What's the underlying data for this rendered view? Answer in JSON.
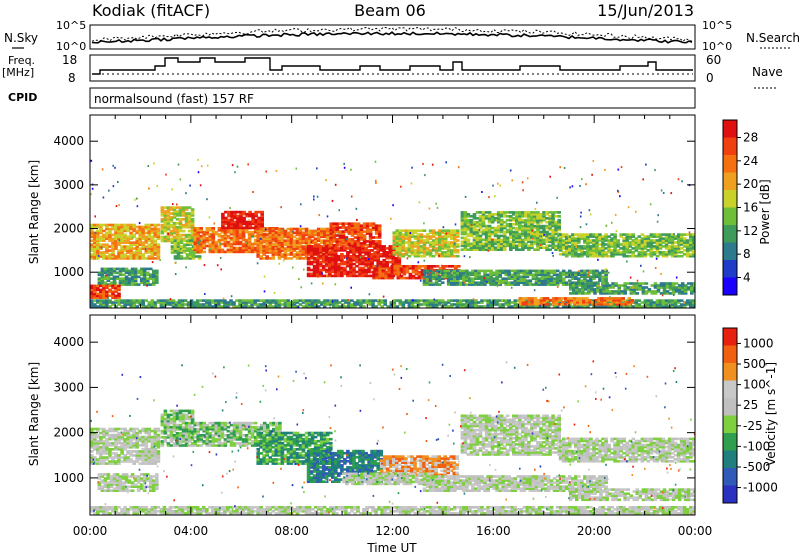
{
  "header": {
    "station": "Kodiak (fitACF)",
    "beam": "Beam 06",
    "date": "15/Jun/2013"
  },
  "noise_panel": {
    "left_label": "N.Sky",
    "right_label": "N.Search",
    "left_ticks": [
      "10^5",
      "10^0"
    ],
    "right_ticks": [
      "10^5",
      "10^0"
    ]
  },
  "freq_panel": {
    "left_label_1": "Freq.",
    "left_label_2": "[MHz]",
    "right_label": "Nave",
    "left_ticks": [
      "18",
      "8"
    ],
    "right_ticks": [
      "60",
      "0"
    ]
  },
  "cpid_panel": {
    "label": "CPID",
    "mode": "normalsound (fast) 157 RF"
  },
  "colors": {
    "power_scale": [
      "#1a00ff",
      "#1e3cc8",
      "#2d7a8c",
      "#3f9b5a",
      "#6fbe3a",
      "#c8d22a",
      "#f0a020",
      "#f57010",
      "#f04010",
      "#e01010"
    ],
    "velocity_scale": [
      "#2a30c0",
      "#2f5ab8",
      "#1f7f7f",
      "#2f9f4f",
      "#7fd03f",
      "#c0c0c0",
      "#c8c8c8",
      "#f09020",
      "#f06010",
      "#e82010"
    ]
  },
  "chart_data": [
    {
      "type": "heatmap",
      "name": "power",
      "ylabel": "Slant Range [km]",
      "yticks": [
        1000,
        2000,
        3000,
        4000
      ],
      "ylim": [
        180,
        4600
      ],
      "xlim": [
        0,
        24
      ],
      "colorbar_label": "Power [dB]",
      "colorbar_ticks": [
        "28",
        "24",
        "20",
        "16",
        "12",
        "8",
        "4"
      ],
      "echo_bands": [
        {
          "t": [
            0,
            2.7
          ],
          "r": [
            1300,
            2100
          ],
          "level": 6
        },
        {
          "t": [
            0.3,
            2.7
          ],
          "r": [
            700,
            1100
          ],
          "level": 3
        },
        {
          "t": [
            0,
            1.1
          ],
          "r": [
            400,
            700
          ],
          "level": 8
        },
        {
          "t": [
            2.8,
            4.1
          ],
          "r": [
            1700,
            2500
          ],
          "level": 5
        },
        {
          "t": [
            3.2,
            4.3
          ],
          "r": [
            1300,
            1750
          ],
          "level": 4
        },
        {
          "t": [
            4.1,
            7.5
          ],
          "r": [
            1450,
            2000
          ],
          "level": 7
        },
        {
          "t": [
            5.2,
            6.8
          ],
          "r": [
            2000,
            2400
          ],
          "level": 9
        },
        {
          "t": [
            6.6,
            9.5
          ],
          "r": [
            1300,
            2000
          ],
          "level": 7
        },
        {
          "t": [
            8.6,
            12.3
          ],
          "r": [
            900,
            1600
          ],
          "level": 9
        },
        {
          "t": [
            9.5,
            11.5
          ],
          "r": [
            1600,
            2100
          ],
          "level": 8
        },
        {
          "t": [
            11.2,
            14.6
          ],
          "r": [
            850,
            1150
          ],
          "level": 8
        },
        {
          "t": [
            12.0,
            14.6
          ],
          "r": [
            1350,
            1950
          ],
          "level": 5
        },
        {
          "t": [
            14.7,
            18.6
          ],
          "r": [
            1500,
            2400
          ],
          "level": 4
        },
        {
          "t": [
            18.6,
            24
          ],
          "r": [
            1350,
            1850
          ],
          "level": 4
        },
        {
          "t": [
            13.2,
            20.5
          ],
          "r": [
            700,
            1050
          ],
          "level": 3
        },
        {
          "t": [
            19.0,
            24
          ],
          "r": [
            500,
            750
          ],
          "level": 3
        },
        {
          "t": [
            0,
            24
          ],
          "r": [
            200,
            380
          ],
          "level": 3
        },
        {
          "t": [
            17.0,
            21.5
          ],
          "r": [
            250,
            400
          ],
          "level": 7
        }
      ]
    },
    {
      "type": "heatmap",
      "name": "velocity",
      "xlabel": "Time UT",
      "ylabel": "Slant Range [km]",
      "yticks": [
        1000,
        2000,
        3000,
        4000
      ],
      "ylim": [
        180,
        4600
      ],
      "xlim": [
        0,
        24
      ],
      "xticks": [
        "00:00",
        "04:00",
        "08:00",
        "12:00",
        "16:00",
        "20:00",
        "00:00"
      ],
      "colorbar_label": "Velocity [m s^-1]",
      "colorbar_ticks": [
        "1000",
        "500",
        "100",
        "25",
        "-25",
        "-100",
        "-500",
        "-1000"
      ],
      "echo_bands": [
        {
          "t": [
            0,
            2.7
          ],
          "r": [
            1300,
            2100
          ],
          "level": 5
        },
        {
          "t": [
            0.3,
            2.7
          ],
          "r": [
            700,
            1100
          ],
          "level": 5
        },
        {
          "t": [
            2.8,
            4.1
          ],
          "r": [
            1700,
            2500
          ],
          "level": 4
        },
        {
          "t": [
            4.1,
            7.5
          ],
          "r": [
            1700,
            2200
          ],
          "level": 4
        },
        {
          "t": [
            6.6,
            9.5
          ],
          "r": [
            1300,
            2000
          ],
          "level": 3
        },
        {
          "t": [
            8.6,
            11.5
          ],
          "r": [
            900,
            1600
          ],
          "level": 2
        },
        {
          "t": [
            11.5,
            14.6
          ],
          "r": [
            1050,
            1500
          ],
          "level": 7
        },
        {
          "t": [
            10.0,
            13.5
          ],
          "r": [
            850,
            1100
          ],
          "level": 5
        },
        {
          "t": [
            14.7,
            18.6
          ],
          "r": [
            1500,
            2400
          ],
          "level": 5
        },
        {
          "t": [
            18.6,
            24
          ],
          "r": [
            1350,
            1850
          ],
          "level": 5
        },
        {
          "t": [
            13.2,
            20.5
          ],
          "r": [
            700,
            1050
          ],
          "level": 5
        },
        {
          "t": [
            19.0,
            24
          ],
          "r": [
            500,
            750
          ],
          "level": 5
        },
        {
          "t": [
            0,
            24
          ],
          "r": [
            200,
            380
          ],
          "level": 5
        }
      ]
    }
  ]
}
